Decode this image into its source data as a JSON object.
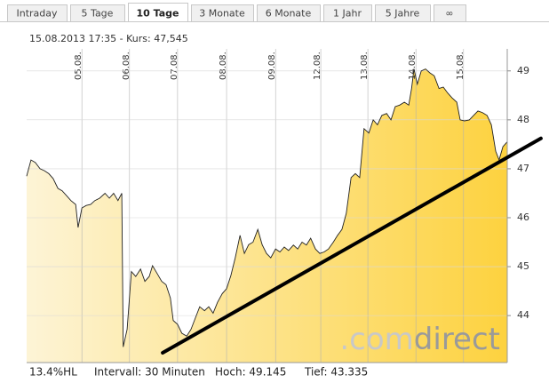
{
  "tabs": [
    "Intraday",
    "5 Tage",
    "10 Tage",
    "3 Monate",
    "6 Monate",
    "1 Jahr",
    "5 Jahre",
    "∞"
  ],
  "active_tab": "10 Tage",
  "chart_data": {
    "type": "line",
    "header": "15.08.2013 17:35  -  Kurs: 47,545",
    "x": [
      0,
      0.09,
      0.18,
      0.28,
      0.37,
      0.46,
      0.55,
      0.65,
      0.74,
      0.83,
      0.92,
      1.02,
      1.07,
      1.15,
      1.24,
      1.33,
      1.42,
      1.52,
      1.63,
      1.72,
      1.81,
      1.9,
      1.98,
      2.01,
      2.09,
      2.18,
      2.27,
      2.37,
      2.46,
      2.55,
      2.62,
      2.72,
      2.81,
      2.9,
      2.99,
      3.05,
      3.14,
      3.23,
      3.33,
      3.42,
      3.51,
      3.6,
      3.7,
      3.79,
      3.88,
      3.97,
      4.07,
      4.16,
      4.25,
      4.34,
      4.44,
      4.53,
      4.62,
      4.71,
      4.81,
      4.9,
      4.99,
      5.08,
      5.18,
      5.27,
      5.36,
      5.45,
      5.55,
      5.64,
      5.73,
      5.82,
      5.91,
      6.01,
      6.1,
      6.19,
      6.28,
      6.38,
      6.47,
      6.56,
      6.65,
      6.75,
      6.84,
      6.93,
      7.02,
      7.12,
      7.21,
      7.3,
      7.39,
      7.49,
      7.58,
      7.67,
      7.76,
      7.86,
      7.95,
      8.01,
      8.06,
      8.13,
      8.21,
      8.3,
      8.39,
      8.48,
      8.58,
      8.67,
      8.76,
      8.85,
      8.95,
      9.02,
      9.11,
      9.21,
      9.3,
      9.39,
      9.48,
      9.58,
      9.67,
      9.76,
      9.83,
      9.91,
      10.0
    ],
    "series": [
      {
        "name": "Kurs",
        "color": "#222222",
        "values": [
          46.85,
          47.18,
          47.13,
          47.0,
          46.96,
          46.9,
          46.8,
          46.6,
          46.55,
          46.45,
          46.35,
          46.27,
          45.8,
          46.2,
          46.25,
          46.27,
          46.35,
          46.4,
          46.5,
          46.4,
          46.5,
          46.35,
          46.5,
          43.36,
          43.72,
          44.9,
          44.8,
          44.95,
          44.7,
          44.8,
          45.02,
          44.85,
          44.7,
          44.63,
          44.36,
          43.9,
          43.82,
          43.64,
          43.58,
          43.72,
          43.95,
          44.18,
          44.1,
          44.18,
          44.05,
          44.27,
          44.45,
          44.55,
          44.82,
          45.18,
          45.64,
          45.27,
          45.45,
          45.5,
          45.76,
          45.45,
          45.27,
          45.18,
          45.36,
          45.3,
          45.4,
          45.33,
          45.44,
          45.36,
          45.5,
          45.44,
          45.58,
          45.36,
          45.27,
          45.3,
          45.36,
          45.5,
          45.64,
          45.76,
          46.09,
          46.82,
          46.9,
          46.82,
          47.82,
          47.73,
          48.0,
          47.9,
          48.09,
          48.13,
          48.0,
          48.27,
          48.3,
          48.36,
          48.3,
          48.64,
          49.04,
          48.73,
          49.0,
          49.04,
          48.96,
          48.9,
          48.64,
          48.67,
          48.55,
          48.45,
          48.36,
          48.0,
          47.98,
          48.0,
          48.09,
          48.18,
          48.15,
          48.09,
          47.9,
          47.36,
          47.18,
          47.45,
          47.55
        ]
      }
    ],
    "trendline": {
      "color": "#000000",
      "x": [
        2.83,
        10.7
      ],
      "values": [
        43.24,
        47.62
      ]
    },
    "xlim": [
      0,
      10
    ],
    "xticks": [
      {
        "value": 1.15,
        "label": "05.08."
      },
      {
        "value": 2.14,
        "label": "06.08."
      },
      {
        "value": 3.14,
        "label": "07.08."
      },
      {
        "value": 4.16,
        "label": "08.08."
      },
      {
        "value": 5.18,
        "label": "09.08."
      },
      {
        "value": 6.12,
        "label": "12.08."
      },
      {
        "value": 7.1,
        "label": "13.08."
      },
      {
        "value": 8.1,
        "label": "14.08."
      },
      {
        "value": 9.09,
        "label": "15.08."
      }
    ],
    "ylim": [
      43.04,
      49.45
    ],
    "yticks": [
      44,
      45,
      46,
      47,
      48,
      49
    ],
    "grid": true,
    "fill_colors": [
      "#fdf4d6",
      "#fdd23f"
    ],
    "watermark": [
      ".com",
      "direct"
    ],
    "footer": [
      "13.4%HL",
      "Intervall: 30 Minuten",
      "Hoch: 49.145",
      "Tief: 43.335"
    ]
  }
}
